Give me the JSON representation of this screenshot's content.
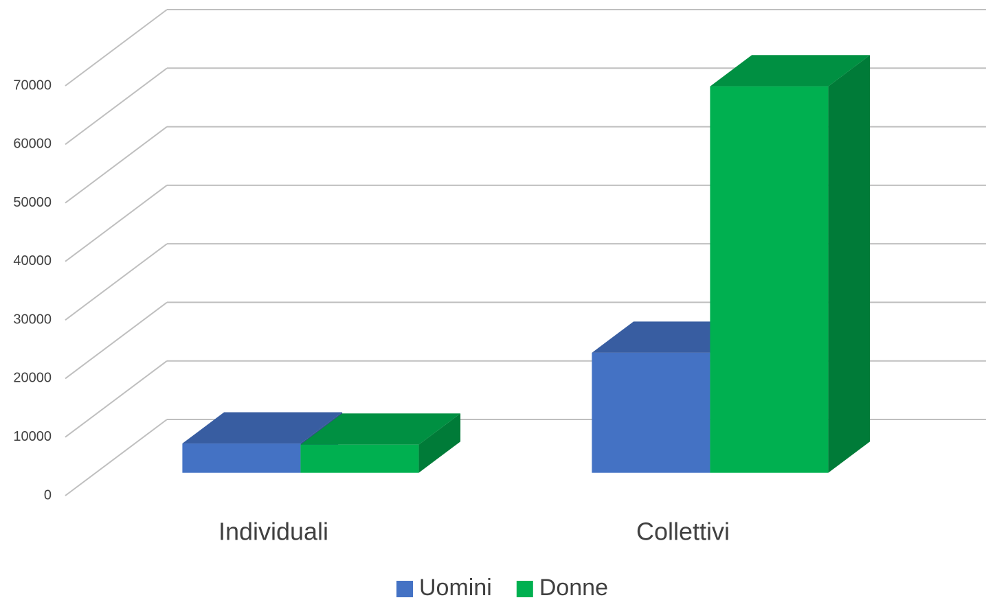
{
  "chart_data": {
    "type": "bar3d",
    "categories": [
      "Individuali",
      "Collettivi"
    ],
    "series": [
      {
        "name": "Uomini",
        "color": "#4472c4",
        "values": [
          5000,
          20500
        ]
      },
      {
        "name": "Donne",
        "color": "#00b050",
        "values": [
          4800,
          66000
        ]
      }
    ],
    "ylim": [
      0,
      70000
    ],
    "yticks": [
      0,
      10000,
      20000,
      30000,
      40000,
      50000,
      60000,
      70000
    ],
    "grid": true,
    "legend": "bottom"
  }
}
